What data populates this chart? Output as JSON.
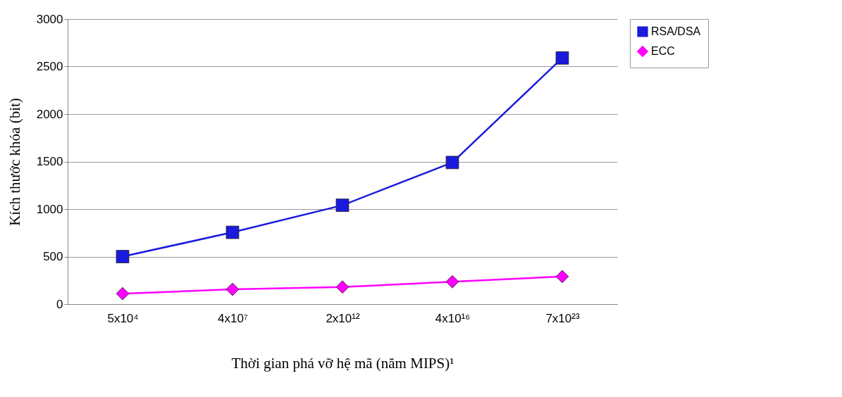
{
  "chart_data": {
    "type": "line",
    "xlabel": "Thời gian phá vỡ hệ mã (năm MIPS)¹",
    "ylabel": "Kích thước khóa (bit)",
    "categories": [
      "5x10⁴",
      "4x10⁷",
      "2x10¹²",
      "4x10¹⁶",
      "7x10²³"
    ],
    "series": [
      {
        "name": "RSA/DSA",
        "color": "#1a1adc",
        "marker": "square",
        "values": [
          500,
          755,
          1040,
          1490,
          2590
        ]
      },
      {
        "name": "ECC",
        "color": "#ff00ff",
        "marker": "diamond",
        "values": [
          110,
          155,
          180,
          235,
          290
        ]
      }
    ],
    "ylim": [
      0,
      3000
    ],
    "yticks": [
      0,
      500,
      1000,
      1500,
      2000,
      2500,
      3000
    ],
    "grid": "y",
    "legend": "right",
    "line_style": "solid"
  }
}
